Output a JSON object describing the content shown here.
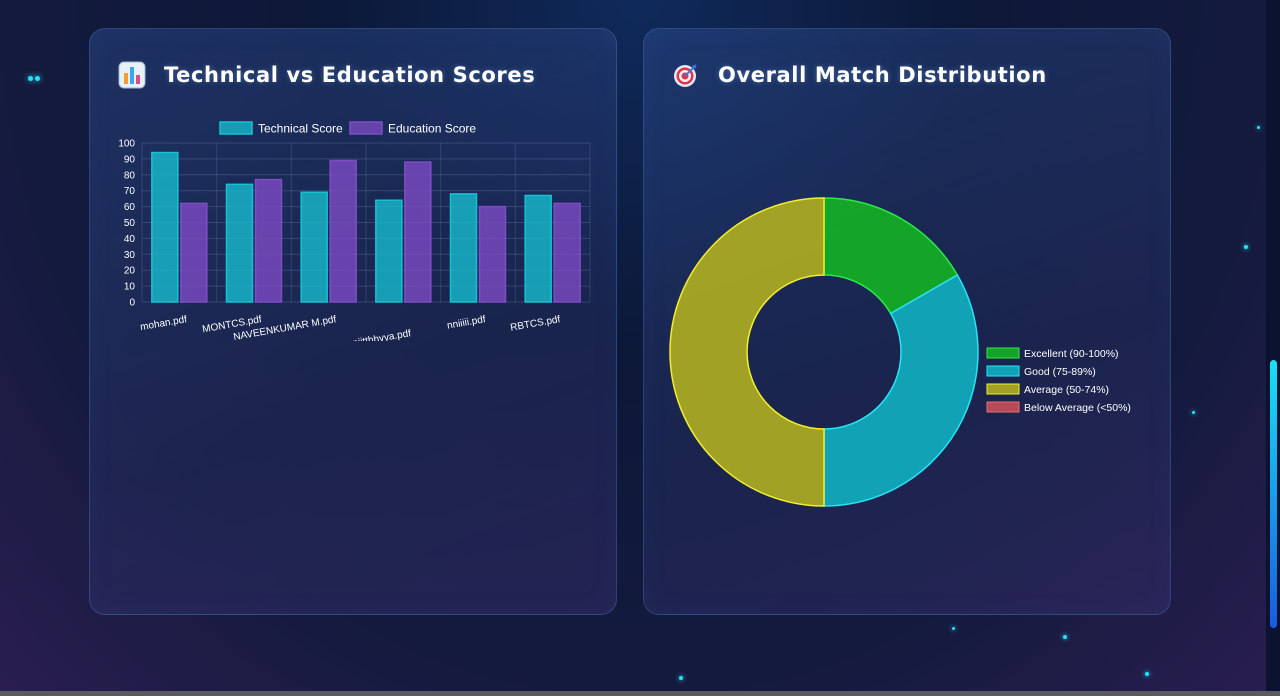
{
  "cards": [
    {
      "title": "Technical vs Education Scores",
      "icon": "bar-chart-icon"
    },
    {
      "title": "Overall Match Distribution",
      "icon": "target-icon"
    }
  ],
  "chart_data": [
    {
      "type": "bar",
      "categories": [
        "mohan.pdf",
        "MONTCS.pdf",
        "NAVEENKUMAR  M.pdf",
        "niitthhyya.pdf",
        "nniiiii.pdf",
        "RBTCS.pdf"
      ],
      "series": [
        {
          "name": "Technical Score",
          "values": [
            94,
            74,
            69,
            64,
            68,
            67
          ],
          "color": "#17c0d2"
        },
        {
          "name": "Education Score",
          "values": [
            62,
            77,
            89,
            88,
            60,
            62
          ],
          "color": "#7f4cc6"
        }
      ],
      "ylim": [
        0,
        100
      ],
      "yticks": [
        0,
        10,
        20,
        30,
        40,
        50,
        60,
        70,
        80,
        90,
        100
      ],
      "grid": true,
      "legend": "top"
    },
    {
      "type": "pie",
      "donut": true,
      "labels": [
        "Excellent (90-100%)",
        "Good (75-89%)",
        "Average (50-74%)",
        "Below Average (<50%)"
      ],
      "values": [
        1,
        2,
        3,
        0
      ],
      "colors": [
        "#13b025",
        "#10aebe",
        "#adac22",
        "#c05058"
      ],
      "borders": [
        "#2ee84a",
        "#29e3f5",
        "#f2ee2f",
        "#ef6a72"
      ],
      "legend": "right"
    }
  ]
}
